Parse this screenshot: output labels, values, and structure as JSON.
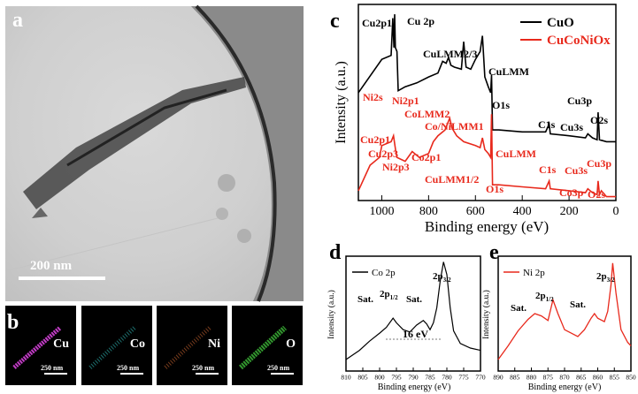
{
  "panel_a": {
    "letter": "a",
    "scale_bar": "200 nm"
  },
  "panel_b": {
    "letter": "b",
    "maps": [
      {
        "element": "Cu",
        "scale": "250 nm",
        "color": "#c23cc6"
      },
      {
        "element": "Co",
        "scale": "250 nm",
        "color": "#2a9d9b"
      },
      {
        "element": "Ni",
        "scale": "250 nm",
        "color": "#a8552a"
      },
      {
        "element": "O",
        "scale": "250 nm",
        "color": "#3fbf3a"
      }
    ]
  },
  "panel_c": {
    "letter": "c",
    "legend": [
      {
        "name": "CuO",
        "color": "#000000"
      },
      {
        "name": "CuCoNiOx",
        "color": "#e8291c"
      }
    ],
    "ylabel": "Intensity (a.u.)",
    "xlabel": "Binding energy (eV)",
    "ticks": [
      "1000",
      "800",
      "600",
      "400",
      "200",
      "0"
    ],
    "labels_cuo": [
      "Cu2p1",
      "Cu 2p",
      "CuLMM2/3",
      "CuLMM",
      "O1s",
      "C1s",
      "Cu3s",
      "Cu3p",
      "O2s"
    ],
    "labels_mix": [
      "Ni2s",
      "Ni2p1",
      "CoLMM2",
      "Co/NiLMM1",
      "Cu2p1",
      "Cu2p3",
      "Ni2p3",
      "Co2p1",
      "CuLMM1/2",
      "CuLMM",
      "O1s",
      "C1s",
      "Cu3s",
      "Cu3p",
      "Co3p",
      "O2s"
    ]
  },
  "panel_d": {
    "letter": "d",
    "legend": "Co 2p",
    "ylabel": "Intensity (a.u.)",
    "xlabel": "Binding energy (eV)",
    "ticks": [
      "810",
      "805",
      "800",
      "795",
      "790",
      "785",
      "780",
      "775",
      "770"
    ],
    "annotations": {
      "sat1": "Sat.",
      "p12": "2p",
      "p12_sub": "1/2",
      "sat2": "Sat.",
      "p32": "2p",
      "p32_sub": "3/2",
      "split": "16 eV"
    }
  },
  "panel_e": {
    "letter": "e",
    "legend": "Ni 2p",
    "ylabel": "Intensity (a.u.)",
    "xlabel": "Binding energy (eV)",
    "ticks": [
      "890",
      "885",
      "880",
      "875",
      "870",
      "865",
      "860",
      "855",
      "850"
    ],
    "annotations": {
      "sat1": "Sat.",
      "p12": "2p",
      "p12_sub": "1/2",
      "sat2": "Sat.",
      "p32": "2p",
      "p32_sub": "3/2"
    }
  },
  "chart_data": [
    {
      "type": "line",
      "title": "",
      "xlabel": "Binding energy (eV)",
      "ylabel": "Intensity (a.u.)",
      "xlim": [
        1100,
        0
      ],
      "x_reversed": true,
      "grid": false,
      "legend_position": "top-right",
      "series": [
        {
          "name": "CuO",
          "x": [
            1100,
            1000,
            960,
            953,
            948,
            945,
            942,
            935,
            930,
            900,
            850,
            800,
            760,
            740,
            725,
            715,
            705,
            690,
            660,
            650,
            640,
            620,
            600,
            580,
            570,
            560,
            545,
            535,
            531,
            527,
            500,
            400,
            300,
            285,
            280,
            200,
            130,
            120,
            100,
            80,
            76,
            70,
            40,
            0
          ],
          "y": [
            0.55,
            0.72,
            0.74,
            0.93,
            0.78,
            0.95,
            0.78,
            0.76,
            0.56,
            0.58,
            0.6,
            0.63,
            0.65,
            0.71,
            0.7,
            0.73,
            0.69,
            0.68,
            0.67,
            0.81,
            0.68,
            0.67,
            0.72,
            0.76,
            0.84,
            0.63,
            0.58,
            0.55,
            0.64,
            0.36,
            0.36,
            0.35,
            0.35,
            0.39,
            0.34,
            0.33,
            0.32,
            0.34,
            0.32,
            0.31,
            0.45,
            0.31,
            0.3,
            0.3
          ]
        },
        {
          "name": "CuCoNiOx",
          "x": [
            1100,
            1050,
            1010,
            1000,
            960,
            950,
            940,
            935,
            900,
            870,
            860,
            840,
            800,
            780,
            760,
            730,
            710,
            700,
            680,
            650,
            600,
            580,
            570,
            560,
            545,
            535,
            531,
            527,
            500,
            400,
            300,
            285,
            280,
            200,
            130,
            120,
            100,
            80,
            76,
            70,
            62,
            40,
            0
          ],
          "y": [
            0.05,
            0.18,
            0.22,
            0.28,
            0.3,
            0.33,
            0.25,
            0.22,
            0.2,
            0.25,
            0.24,
            0.22,
            0.24,
            0.3,
            0.33,
            0.36,
            0.42,
            0.37,
            0.33,
            0.3,
            0.28,
            0.27,
            0.32,
            0.26,
            0.24,
            0.22,
            0.44,
            0.08,
            0.08,
            0.07,
            0.06,
            0.1,
            0.06,
            0.05,
            0.04,
            0.06,
            0.04,
            0.03,
            0.1,
            0.03,
            0.05,
            0.02,
            0.02
          ]
        }
      ]
    },
    {
      "type": "line",
      "title": "",
      "xlabel": "Binding energy (eV)",
      "ylabel": "Intensity (a.u.)",
      "xlim": [
        810,
        770
      ],
      "x_reversed": true,
      "grid": false,
      "legend_position": "top-left",
      "series": [
        {
          "name": "Co 2p",
          "x": [
            810,
            806,
            803,
            800,
            798,
            796,
            795,
            793,
            791,
            789,
            787,
            786,
            785,
            784,
            783,
            782,
            781,
            780,
            779,
            778,
            776,
            773,
            770
          ],
          "y": [
            0.1,
            0.18,
            0.26,
            0.33,
            0.38,
            0.46,
            0.42,
            0.36,
            0.34,
            0.4,
            0.44,
            0.41,
            0.36,
            0.42,
            0.55,
            0.78,
            0.95,
            0.84,
            0.55,
            0.35,
            0.24,
            0.2,
            0.18
          ]
        }
      ]
    },
    {
      "type": "line",
      "title": "",
      "xlabel": "Binding energy (eV)",
      "ylabel": "Intensity (a.u.)",
      "xlim": [
        890,
        850
      ],
      "x_reversed": true,
      "grid": false,
      "legend_position": "top-left",
      "series": [
        {
          "name": "Ni 2p",
          "x": [
            890,
            887,
            884,
            881,
            879,
            877,
            875,
            873.5,
            872,
            870,
            868,
            866,
            864,
            862,
            861,
            860,
            858,
            857,
            856,
            855.5,
            854.5,
            853,
            851,
            850
          ],
          "y": [
            0.1,
            0.22,
            0.35,
            0.45,
            0.5,
            0.48,
            0.44,
            0.62,
            0.5,
            0.36,
            0.33,
            0.3,
            0.36,
            0.46,
            0.5,
            0.46,
            0.43,
            0.52,
            0.75,
            0.94,
            0.68,
            0.36,
            0.25,
            0.22
          ]
        }
      ]
    }
  ]
}
